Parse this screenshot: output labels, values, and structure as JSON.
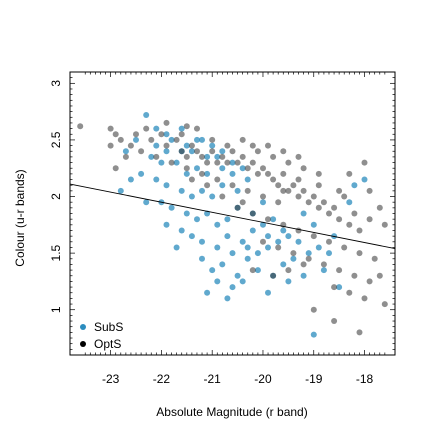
{
  "chart_data": {
    "type": "scatter",
    "xlabel": "Absolute Magnitude (r band)",
    "ylabel": "Colour (u-r bands)",
    "xlim": [
      -23.8,
      -17.4
    ],
    "ylim": [
      0.6,
      3.1
    ],
    "x_ticks": [
      -23,
      -22,
      -21,
      -20,
      -19,
      -18
    ],
    "y_ticks": [
      1,
      1.5,
      2,
      2.5,
      3
    ],
    "x_tick_labels": [
      "-23",
      "-22",
      "-21",
      "-20",
      "-19",
      "-18"
    ],
    "y_tick_labels": [
      "1",
      "1.5",
      "2",
      "2.5",
      "3"
    ],
    "grid": false,
    "legend": {
      "position": "bottom-left",
      "entries": [
        "SubS",
        "OptS"
      ]
    },
    "line": {
      "x": [
        -23.8,
        -17.4
      ],
      "y": [
        2.11,
        1.54
      ],
      "color": "#000000"
    },
    "series": [
      {
        "name": "SubS",
        "color": "#2b8cbe",
        "points": [
          [
            -22.3,
            2.72
          ],
          [
            -22.1,
            2.6
          ],
          [
            -21.9,
            2.55
          ],
          [
            -21.8,
            2.5
          ],
          [
            -21.6,
            2.6
          ],
          [
            -21.5,
            2.45
          ],
          [
            -21.4,
            2.4
          ],
          [
            -21.2,
            2.5
          ],
          [
            -21.0,
            2.45
          ],
          [
            -20.9,
            2.35
          ],
          [
            -22.5,
            2.5
          ],
          [
            -22.7,
            2.4
          ],
          [
            -22.2,
            2.35
          ],
          [
            -22.0,
            2.3
          ],
          [
            -21.7,
            2.3
          ],
          [
            -21.5,
            2.2
          ],
          [
            -21.3,
            2.25
          ],
          [
            -21.1,
            2.2
          ],
          [
            -20.8,
            2.25
          ],
          [
            -20.6,
            2.2
          ],
          [
            -22.4,
            2.2
          ],
          [
            -22.1,
            2.15
          ],
          [
            -21.9,
            2.1
          ],
          [
            -21.6,
            2.05
          ],
          [
            -21.4,
            2.0
          ],
          [
            -21.2,
            2.05
          ],
          [
            -21.0,
            2.0
          ],
          [
            -20.8,
            2.1
          ],
          [
            -20.5,
            2.05
          ],
          [
            -20.3,
            2.15
          ],
          [
            -22.0,
            1.95
          ],
          [
            -21.8,
            1.9
          ],
          [
            -21.5,
            1.85
          ],
          [
            -21.3,
            1.8
          ],
          [
            -21.1,
            1.85
          ],
          [
            -20.9,
            1.75
          ],
          [
            -20.7,
            1.8
          ],
          [
            -20.5,
            1.9
          ],
          [
            -20.2,
            1.85
          ],
          [
            -20.0,
            1.95
          ],
          [
            -21.6,
            1.7
          ],
          [
            -21.4,
            1.65
          ],
          [
            -21.2,
            1.6
          ],
          [
            -20.9,
            1.55
          ],
          [
            -20.7,
            1.65
          ],
          [
            -20.4,
            1.6
          ],
          [
            -20.2,
            1.7
          ],
          [
            -20.0,
            1.75
          ],
          [
            -19.8,
            1.8
          ],
          [
            -19.6,
            1.7
          ],
          [
            -21.2,
            1.45
          ],
          [
            -21.0,
            1.35
          ],
          [
            -20.8,
            1.4
          ],
          [
            -20.5,
            1.3
          ],
          [
            -20.3,
            1.45
          ],
          [
            -20.1,
            1.5
          ],
          [
            -19.9,
            1.55
          ],
          [
            -19.7,
            1.6
          ],
          [
            -19.5,
            1.65
          ],
          [
            -19.3,
            1.6
          ],
          [
            -20.9,
            1.25
          ],
          [
            -20.6,
            1.2
          ],
          [
            -20.4,
            1.25
          ],
          [
            -20.1,
            1.35
          ],
          [
            -19.8,
            1.3
          ],
          [
            -19.6,
            1.4
          ],
          [
            -19.4,
            1.45
          ],
          [
            -19.1,
            1.5
          ],
          [
            -18.9,
            1.55
          ],
          [
            -18.7,
            1.5
          ],
          [
            -21.1,
            1.15
          ],
          [
            -20.7,
            1.1
          ],
          [
            -19.9,
            1.15
          ],
          [
            -19.5,
            1.25
          ],
          [
            -19.2,
            1.3
          ],
          [
            -18.8,
            1.35
          ],
          [
            -18.5,
            1.2
          ],
          [
            -19.0,
            0.78
          ],
          [
            -22.6,
            2.15
          ],
          [
            -22.8,
            2.05
          ],
          [
            -22.3,
            1.95
          ],
          [
            -21.9,
            1.75
          ],
          [
            -21.7,
            1.55
          ],
          [
            -20.6,
            1.5
          ],
          [
            -20.3,
            1.55
          ],
          [
            -19.9,
            1.65
          ],
          [
            -19.2,
            1.85
          ],
          [
            -19.0,
            1.75
          ],
          [
            -18.6,
            1.65
          ],
          [
            -18.3,
            1.95
          ],
          [
            -18.2,
            2.1
          ],
          [
            -18.0,
            2.15
          ],
          [
            -21.3,
            2.5
          ],
          [
            -21.1,
            2.35
          ],
          [
            -20.8,
            2.4
          ],
          [
            -20.6,
            2.3
          ],
          [
            -20.4,
            2.25
          ],
          [
            -21.6,
            2.4
          ],
          [
            -21.9,
            2.4
          ],
          [
            -22.1,
            2.45
          ]
        ]
      },
      {
        "name": "OptS",
        "color": "#333333",
        "points": [
          [
            -23.6,
            2.62
          ],
          [
            -23.0,
            2.6
          ],
          [
            -22.9,
            2.55
          ],
          [
            -22.8,
            2.5
          ],
          [
            -22.6,
            2.45
          ],
          [
            -22.5,
            2.55
          ],
          [
            -22.3,
            2.6
          ],
          [
            -22.2,
            2.5
          ],
          [
            -22.0,
            2.55
          ],
          [
            -21.9,
            2.45
          ],
          [
            -21.7,
            2.5
          ],
          [
            -21.6,
            2.4
          ],
          [
            -21.5,
            2.35
          ],
          [
            -21.4,
            2.45
          ],
          [
            -21.3,
            2.4
          ],
          [
            -21.2,
            2.35
          ],
          [
            -21.1,
            2.3
          ],
          [
            -21.0,
            2.4
          ],
          [
            -20.9,
            2.3
          ],
          [
            -20.8,
            2.35
          ],
          [
            -20.7,
            2.3
          ],
          [
            -20.6,
            2.4
          ],
          [
            -20.5,
            2.3
          ],
          [
            -20.4,
            2.35
          ],
          [
            -20.3,
            2.25
          ],
          [
            -20.2,
            2.3
          ],
          [
            -20.1,
            2.2
          ],
          [
            -20.0,
            2.25
          ],
          [
            -19.9,
            2.2
          ],
          [
            -19.8,
            2.15
          ],
          [
            -19.7,
            2.1
          ],
          [
            -19.6,
            2.2
          ],
          [
            -19.5,
            2.05
          ],
          [
            -19.4,
            2.1
          ],
          [
            -19.3,
            2.0
          ],
          [
            -19.2,
            2.05
          ],
          [
            -19.1,
            1.95
          ],
          [
            -19.0,
            2.0
          ],
          [
            -18.9,
            1.9
          ],
          [
            -18.8,
            1.95
          ],
          [
            -18.7,
            1.85
          ],
          [
            -18.6,
            1.9
          ],
          [
            -18.5,
            1.8
          ],
          [
            -18.4,
            2.0
          ],
          [
            -18.3,
            1.75
          ],
          [
            -18.2,
            1.85
          ],
          [
            -18.1,
            1.7
          ],
          [
            -17.9,
            1.8
          ],
          [
            -17.7,
            1.9
          ],
          [
            -17.6,
            1.75
          ],
          [
            -22.4,
            2.4
          ],
          [
            -22.1,
            2.35
          ],
          [
            -21.8,
            2.3
          ],
          [
            -21.5,
            2.25
          ],
          [
            -21.2,
            2.2
          ],
          [
            -20.9,
            2.15
          ],
          [
            -20.6,
            2.1
          ],
          [
            -20.3,
            2.05
          ],
          [
            -20.0,
            2.0
          ],
          [
            -19.7,
            1.95
          ],
          [
            -21.6,
            2.55
          ],
          [
            -21.3,
            2.6
          ],
          [
            -21.0,
            2.5
          ],
          [
            -20.7,
            2.45
          ],
          [
            -20.4,
            2.5
          ],
          [
            -20.1,
            2.4
          ],
          [
            -19.8,
            2.35
          ],
          [
            -19.5,
            2.3
          ],
          [
            -19.2,
            2.25
          ],
          [
            -18.9,
            2.2
          ],
          [
            -20.5,
            1.9
          ],
          [
            -20.2,
            1.85
          ],
          [
            -19.9,
            1.8
          ],
          [
            -19.6,
            1.75
          ],
          [
            -19.3,
            1.7
          ],
          [
            -19.0,
            1.65
          ],
          [
            -18.7,
            1.6
          ],
          [
            -18.4,
            1.55
          ],
          [
            -18.1,
            1.5
          ],
          [
            -17.8,
            1.45
          ],
          [
            -20.0,
            1.6
          ],
          [
            -19.7,
            1.55
          ],
          [
            -19.4,
            1.5
          ],
          [
            -19.1,
            1.45
          ],
          [
            -18.8,
            1.4
          ],
          [
            -18.5,
            1.35
          ],
          [
            -18.2,
            1.3
          ],
          [
            -17.9,
            1.25
          ],
          [
            -18.6,
            1.2
          ],
          [
            -18.3,
            1.15
          ],
          [
            -19.2,
            1.4
          ],
          [
            -19.5,
            1.35
          ],
          [
            -19.8,
            1.3
          ],
          [
            -20.2,
            1.35
          ],
          [
            -18.0,
            1.1
          ],
          [
            -17.7,
            1.3
          ],
          [
            -17.6,
            1.05
          ],
          [
            -19.0,
            1.0
          ],
          [
            -18.1,
            0.8
          ],
          [
            -18.6,
            0.9
          ],
          [
            -22.7,
            2.35
          ],
          [
            -23.0,
            2.45
          ],
          [
            -22.9,
            2.25
          ],
          [
            -21.4,
            2.15
          ],
          [
            -21.1,
            2.1
          ],
          [
            -20.8,
            2.0
          ],
          [
            -20.4,
            1.95
          ],
          [
            -19.6,
            2.05
          ],
          [
            -19.3,
            2.15
          ],
          [
            -18.9,
            2.1
          ],
          [
            -18.5,
            2.05
          ],
          [
            -18.3,
            2.2
          ],
          [
            -18.0,
            2.3
          ],
          [
            -17.9,
            2.05
          ],
          [
            -20.2,
            2.45
          ],
          [
            -19.9,
            2.45
          ],
          [
            -19.6,
            2.4
          ],
          [
            -19.3,
            2.35
          ],
          [
            -21.9,
            2.65
          ],
          [
            -21.5,
            2.62
          ]
        ]
      }
    ]
  }
}
